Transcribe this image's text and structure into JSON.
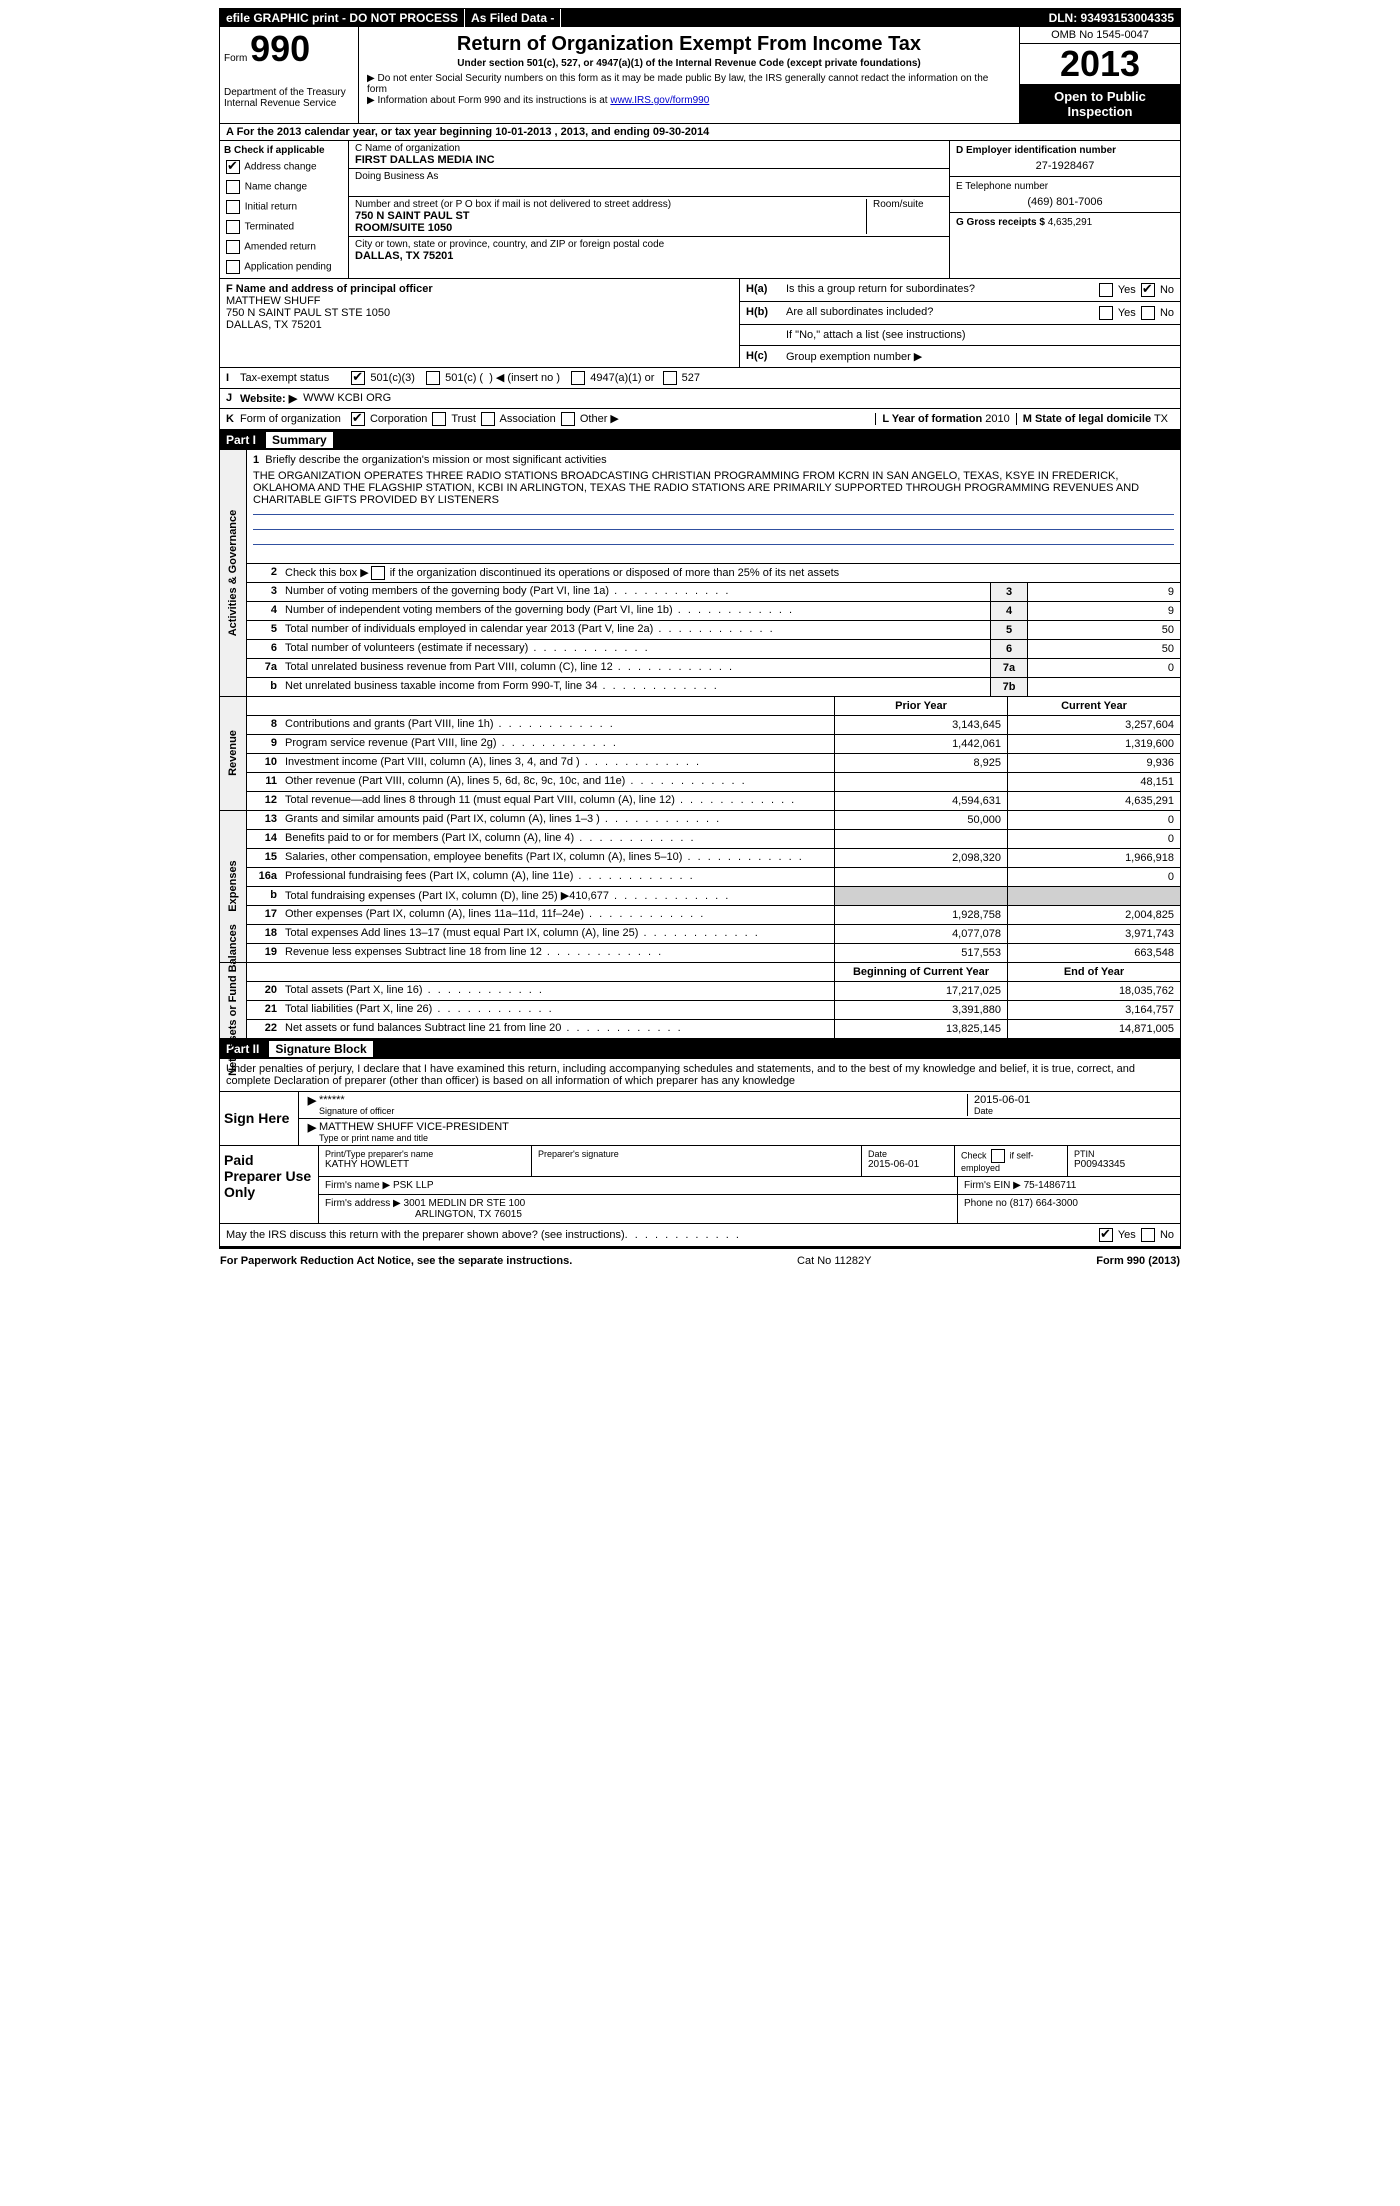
{
  "topbar": {
    "efile": "efile GRAPHIC print - DO NOT PROCESS",
    "asfiled": "As Filed Data -",
    "dln": "DLN: 93493153004335"
  },
  "header": {
    "form_prefix": "Form",
    "form_no": "990",
    "dept1": "Department of the Treasury",
    "dept2": "Internal Revenue Service",
    "title": "Return of Organization Exempt From Income Tax",
    "subtitle": "Under section 501(c), 527, or 4947(a)(1) of the Internal Revenue Code (except private foundations)",
    "note1": "▶ Do not enter Social Security numbers on this form as it may be made public  By law, the IRS generally cannot redact the information on the form",
    "note2_prefix": "▶ Information about Form 990 and its instructions is at ",
    "note2_link": "www.IRS.gov/form990",
    "omb": "OMB No  1545-0047",
    "year": "2013",
    "open": "Open to Public Inspection"
  },
  "rowA": "A  For the 2013 calendar year, or tax year beginning 10-01-2013    , 2013, and ending 09-30-2014",
  "colB": {
    "title": "B  Check if applicable",
    "items": [
      {
        "label": "Address change",
        "checked": true
      },
      {
        "label": "Name change",
        "checked": false
      },
      {
        "label": "Initial return",
        "checked": false
      },
      {
        "label": "Terminated",
        "checked": false
      },
      {
        "label": "Amended return",
        "checked": false
      },
      {
        "label": "Application pending",
        "checked": false
      }
    ]
  },
  "colC": {
    "name_label": "C Name of organization",
    "name": "FIRST DALLAS MEDIA INC",
    "dba_label": "Doing Business As",
    "dba": "",
    "street_label": "Number and street (or P O  box if mail is not delivered to street address)",
    "room_label": "Room/suite",
    "street": "750 N SAINT PAUL ST",
    "room": "ROOM/SUITE 1050",
    "city_label": "City or town, state or province, country, and ZIP or foreign postal code",
    "city": "DALLAS, TX  75201"
  },
  "colD": {
    "ein_label": "D Employer identification number",
    "ein": "27-1928467",
    "phone_label": "E Telephone number",
    "phone": "(469) 801-7006",
    "gross_label": "G Gross receipts $",
    "gross": "4,635,291"
  },
  "colF": {
    "label": "F    Name and address of principal officer",
    "name": "MATTHEW SHUFF",
    "addr1": "750 N SAINT PAUL ST STE 1050",
    "addr2": "DALLAS, TX  75201"
  },
  "colH": {
    "ha_label": "H(a)",
    "ha_text": "Is this a group return for subordinates?",
    "ha_yes": "Yes",
    "ha_no": "No",
    "hb_label": "H(b)",
    "hb_text": "Are all subordinates included?",
    "hb_note": "If \"No,\" attach a list  (see instructions)",
    "hc_label": "H(c)",
    "hc_text": "Group exemption number ▶"
  },
  "rowI": {
    "tag": "I",
    "label": "Tax-exempt status",
    "opts": "501(c)(3)        501(c) (    ) ◀ (insert no )        4947(a)(1) or        527"
  },
  "rowJ": {
    "tag": "J",
    "label": "Website: ▶",
    "val": "WWW KCBI ORG"
  },
  "rowK": {
    "tag": "K",
    "label": "Form of organization",
    "opts": "Corporation       Trust       Association       Other ▶",
    "L_label": "L Year of formation",
    "L_val": "2010",
    "M_label": "M State of legal domicile",
    "M_val": "TX"
  },
  "part1": {
    "no": "Part I",
    "title": "Summary"
  },
  "mission": {
    "no": "1",
    "label": "Briefly describe the organization's mission or most significant activities",
    "text": "THE ORGANIZATION OPERATES THREE RADIO STATIONS BROADCASTING CHRISTIAN PROGRAMMING FROM KCRN IN SAN ANGELO, TEXAS, KSYE IN FREDERICK, OKLAHOMA AND THE FLAGSHIP STATION, KCBI IN ARLINGTON, TEXAS  THE RADIO STATIONS ARE PRIMARILY SUPPORTED THROUGH PROGRAMMING REVENUES AND CHARITABLE GIFTS PROVIDED BY LISTENERS"
  },
  "line2": {
    "no": "2",
    "text": "Check this box ▶     if the organization discontinued its operations or disposed of more than 25% of its net assets"
  },
  "gov_lines": [
    {
      "no": "3",
      "desc": "Number of voting members of the governing body (Part VI, line 1a)",
      "box": "3",
      "val": "9"
    },
    {
      "no": "4",
      "desc": "Number of independent voting members of the governing body (Part VI, line 1b)",
      "box": "4",
      "val": "9"
    },
    {
      "no": "5",
      "desc": "Total number of individuals employed in calendar year 2013 (Part V, line 2a)",
      "box": "5",
      "val": "50"
    },
    {
      "no": "6",
      "desc": "Total number of volunteers (estimate if necessary)",
      "box": "6",
      "val": "50"
    },
    {
      "no": "7a",
      "desc": "Total unrelated business revenue from Part VIII, column (C), line 12",
      "box": "7a",
      "val": "0"
    },
    {
      "no": "b",
      "desc": "Net unrelated business taxable income from Form 990-T, line 34",
      "box": "7b",
      "val": ""
    }
  ],
  "pc_header": {
    "prior": "Prior Year",
    "current": "Current Year"
  },
  "revenue": [
    {
      "no": "8",
      "desc": "Contributions and grants (Part VIII, line 1h)",
      "prior": "3,143,645",
      "current": "3,257,604"
    },
    {
      "no": "9",
      "desc": "Program service revenue (Part VIII, line 2g)",
      "prior": "1,442,061",
      "current": "1,319,600"
    },
    {
      "no": "10",
      "desc": "Investment income (Part VIII, column (A), lines 3, 4, and 7d )",
      "prior": "8,925",
      "current": "9,936"
    },
    {
      "no": "11",
      "desc": "Other revenue (Part VIII, column (A), lines 5, 6d, 8c, 9c, 10c, and 11e)",
      "prior": "",
      "current": "48,151"
    },
    {
      "no": "12",
      "desc": "Total revenue—add lines 8 through 11 (must equal Part VIII, column (A), line 12)",
      "prior": "4,594,631",
      "current": "4,635,291"
    }
  ],
  "expenses": [
    {
      "no": "13",
      "desc": "Grants and similar amounts paid (Part IX, column (A), lines 1–3 )",
      "prior": "50,000",
      "current": "0"
    },
    {
      "no": "14",
      "desc": "Benefits paid to or for members (Part IX, column (A), line 4)",
      "prior": "",
      "current": "0"
    },
    {
      "no": "15",
      "desc": "Salaries, other compensation, employee benefits (Part IX, column (A), lines 5–10)",
      "prior": "2,098,320",
      "current": "1,966,918"
    },
    {
      "no": "16a",
      "desc": "Professional fundraising fees (Part IX, column (A), line 11e)",
      "prior": "",
      "current": "0"
    },
    {
      "no": "b",
      "desc": "Total fundraising expenses (Part IX, column (D), line 25) ▶410,677",
      "prior": "",
      "current": "",
      "shaded": true
    },
    {
      "no": "17",
      "desc": "Other expenses (Part IX, column (A), lines 11a–11d, 11f–24e)",
      "prior": "1,928,758",
      "current": "2,004,825"
    },
    {
      "no": "18",
      "desc": "Total expenses  Add lines 13–17 (must equal Part IX, column (A), line 25)",
      "prior": "4,077,078",
      "current": "3,971,743"
    },
    {
      "no": "19",
      "desc": "Revenue less expenses  Subtract line 18 from line 12",
      "prior": "517,553",
      "current": "663,548"
    }
  ],
  "na_header": {
    "prior": "Beginning of Current Year",
    "current": "End of Year"
  },
  "netassets": [
    {
      "no": "20",
      "desc": "Total assets (Part X, line 16)",
      "prior": "17,217,025",
      "current": "18,035,762"
    },
    {
      "no": "21",
      "desc": "Total liabilities (Part X, line 26)",
      "prior": "3,391,880",
      "current": "3,164,757"
    },
    {
      "no": "22",
      "desc": "Net assets or fund balances  Subtract line 21 from line 20",
      "prior": "13,825,145",
      "current": "14,871,005"
    }
  ],
  "side_labels": {
    "gov": "Activities & Governance",
    "rev": "Revenue",
    "exp": "Expenses",
    "na": "Net Assets or Fund Balances"
  },
  "part2": {
    "no": "Part II",
    "title": "Signature Block"
  },
  "declaration": "Under penalties of perjury, I declare that I have examined this return, including accompanying schedules and statements, and to the best of my knowledge and belief, it is true, correct, and complete  Declaration of preparer (other than officer) is based on all information of which preparer has any knowledge",
  "sign": {
    "label": "Sign Here",
    "stars": "******",
    "sig_label": "Signature of officer",
    "date": "2015-06-01",
    "date_label": "Date",
    "name": "MATTHEW SHUFF  VICE-PRESIDENT",
    "name_label": "Type or print name and title"
  },
  "paid": {
    "label": "Paid Preparer Use Only",
    "row1": {
      "c1_label": "Print/Type preparer's name",
      "c1": "KATHY HOWLETT",
      "c2_label": "Preparer's signature",
      "c2": "",
      "c3_label": "Date",
      "c3": "2015-06-01",
      "c4_label": "Check       if self-employed",
      "c5_label": "PTIN",
      "c5": "P00943345"
    },
    "row2": {
      "firm_label": "Firm's name    ▶",
      "firm": "PSK LLP",
      "ein_label": "Firm's EIN ▶",
      "ein": "75-1486711"
    },
    "row3": {
      "addr_label": "Firm's address ▶",
      "addr1": "3001 MEDLIN DR STE 100",
      "addr2": "ARLINGTON, TX  76015",
      "phone_label": "Phone no",
      "phone": "(817) 664-3000"
    }
  },
  "discuss": {
    "text": "May the IRS discuss this return with the preparer shown above? (see instructions)",
    "yes": "Yes",
    "no": "No"
  },
  "footer": {
    "left": "For Paperwork Reduction Act Notice, see the separate instructions.",
    "mid": "Cat No  11282Y",
    "right": "Form 990 (2013)"
  }
}
